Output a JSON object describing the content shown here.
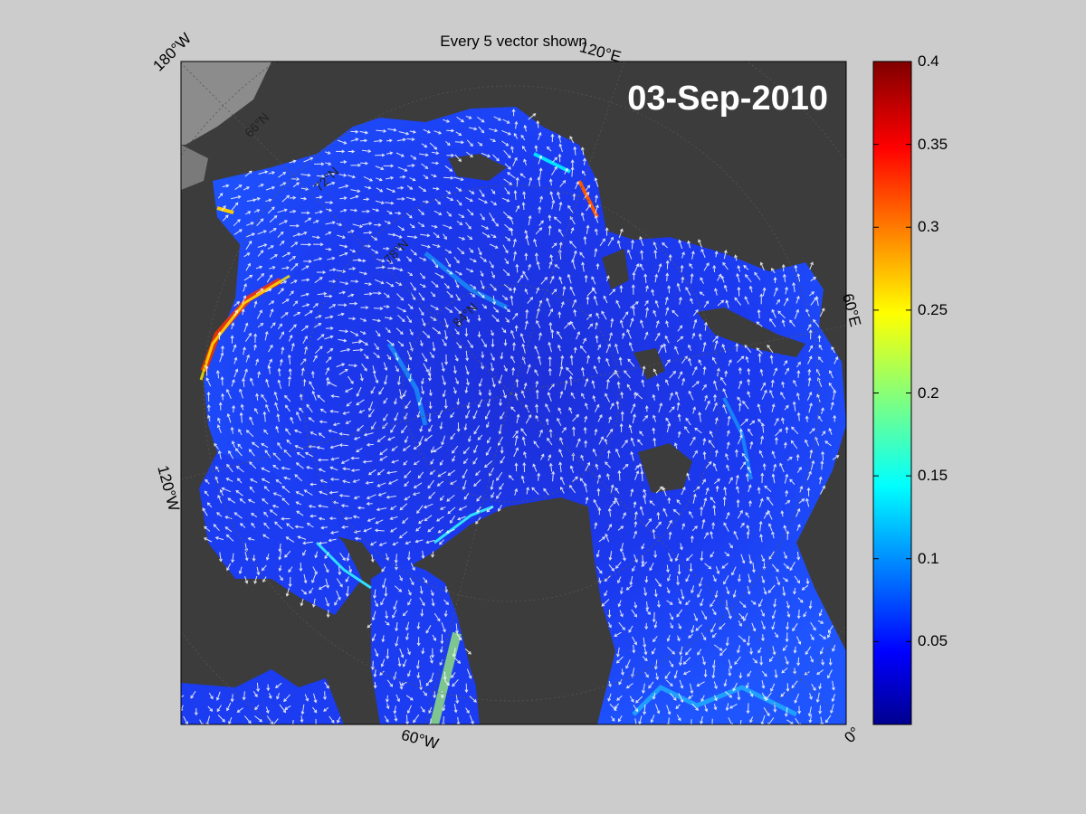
{
  "figure": {
    "title": "Every 5 vector shown",
    "date_label": "03-Sep-2010",
    "projection": "north polar stereographic",
    "longitude_labels": [
      "180°W",
      "120°E",
      "60°E",
      "0°",
      "60°W",
      "120°W"
    ],
    "latitude_labels": [
      "66°N",
      "72°N",
      "78°N",
      "84°N"
    ],
    "colors": {
      "background": "#cccccc",
      "land": "#3c3c3c",
      "ocean_no_data": "#8c8c8c",
      "vectors": "#ffffff",
      "date_text": "#ffffff"
    }
  },
  "colorbar": {
    "colormap": "jet",
    "range": [
      0,
      0.4
    ],
    "tick_labels": [
      "0.4",
      "0.35",
      "0.3",
      "0.25",
      "0.2",
      "0.15",
      "0.1",
      "0.05"
    ]
  }
}
